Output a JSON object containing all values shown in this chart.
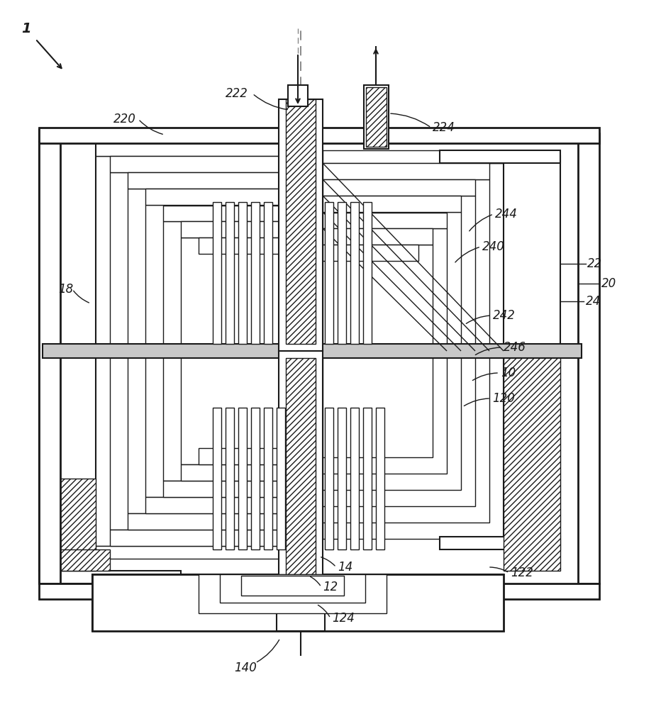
{
  "bg_color": "#ffffff",
  "lc": "#1a1a1a",
  "figsize": [
    9.32,
    10.0
  ],
  "dpi": 100
}
